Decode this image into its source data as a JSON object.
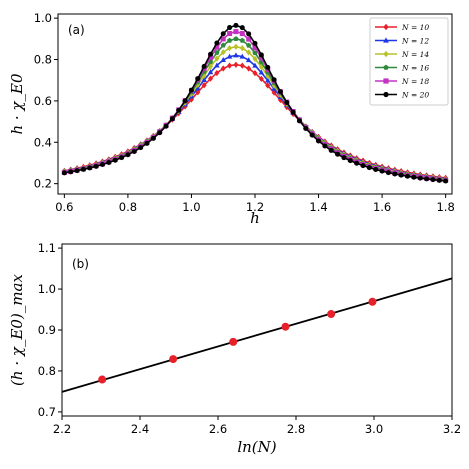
{
  "chart_data": [
    {
      "type": "line",
      "panel_label": "(a)",
      "xlabel": "h",
      "ylabel": "h · χ_E0",
      "xlim": [
        0.58,
        1.82
      ],
      "ylim": [
        0.15,
        1.02
      ],
      "xticks": [
        "0.6",
        "0.8",
        "1.0",
        "1.2",
        "1.4",
        "1.6",
        "1.8"
      ],
      "yticks": [
        "0.2",
        "0.4",
        "0.6",
        "0.8",
        "1.0"
      ],
      "legend_position": "top-right",
      "peak_x": 1.14,
      "series": [
        {
          "name": "N = 10",
          "color": "#e8202a",
          "marker": "diamond",
          "peak": 0.775,
          "left_end": 0.262,
          "right_end": 0.228,
          "width": 0.225
        },
        {
          "name": "N = 12",
          "color": "#1f37e6",
          "marker": "triangle",
          "peak": 0.82,
          "left_end": 0.26,
          "right_end": 0.225,
          "width": 0.21
        },
        {
          "name": "N = 14",
          "color": "#b7c22a",
          "marker": "diamond",
          "peak": 0.862,
          "left_end": 0.258,
          "right_end": 0.222,
          "width": 0.198
        },
        {
          "name": "N = 16",
          "color": "#2f8a3c",
          "marker": "pentagon",
          "peak": 0.9,
          "left_end": 0.256,
          "right_end": 0.219,
          "width": 0.188
        },
        {
          "name": "N = 18",
          "color": "#c432c2",
          "marker": "square",
          "peak": 0.935,
          "left_end": 0.254,
          "right_end": 0.216,
          "width": 0.18
        },
        {
          "name": "N = 20",
          "color": "#000000",
          "marker": "circle",
          "peak": 0.965,
          "left_end": 0.252,
          "right_end": 0.213,
          "width": 0.172
        }
      ]
    },
    {
      "type": "scatter",
      "panel_label": "(b)",
      "xlabel": "ln(N)",
      "ylabel": "(h · χ_E0)_max",
      "xlim": [
        2.2,
        3.2
      ],
      "ylim": [
        0.69,
        1.11
      ],
      "xticks": [
        "2.2",
        "2.4",
        "2.6",
        "2.8",
        "3.0",
        "3.2"
      ],
      "yticks": [
        "0.7",
        "0.8",
        "0.9",
        "1.0",
        "1.1"
      ],
      "points": {
        "x": [
          2.303,
          2.485,
          2.639,
          2.773,
          2.89,
          2.996
        ],
        "y": [
          0.779,
          0.829,
          0.871,
          0.908,
          0.939,
          0.969
        ]
      },
      "point_color": "#e8202a",
      "fit_line": {
        "x": [
          2.2,
          3.2
        ],
        "y": [
          0.749,
          1.026
        ],
        "color": "#000000"
      }
    }
  ]
}
